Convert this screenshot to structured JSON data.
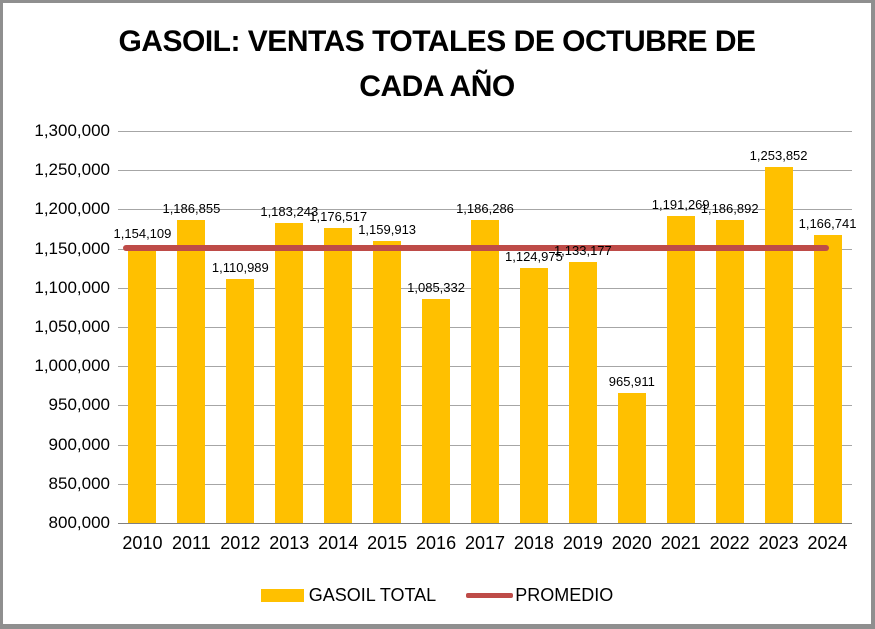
{
  "title": {
    "line1": "GASOIL: VENTAS TOTALES DE OCTUBRE DE",
    "line2": "CADA AÑO"
  },
  "colors": {
    "bar": "#FFC000",
    "promedio_line": "#BE4B48",
    "grid": "#A6A6A6",
    "axis": "#808080",
    "text": "#000000",
    "frame_border": "#8F8F8F",
    "background": "#FFFFFF"
  },
  "chart_data": {
    "type": "bar",
    "title": "GASOIL: VENTAS TOTALES DE OCTUBRE DE CADA AÑO",
    "categories": [
      "2010",
      "2011",
      "2012",
      "2013",
      "2014",
      "2015",
      "2016",
      "2017",
      "2018",
      "2019",
      "2020",
      "2021",
      "2022",
      "2023",
      "2024"
    ],
    "series": [
      {
        "name": "GASOIL TOTAL",
        "type": "bar",
        "color": "#FFC000",
        "values": [
          1154109,
          1186855,
          1110989,
          1183243,
          1176517,
          1159913,
          1085332,
          1186286,
          1124975,
          1133177,
          965911,
          1191269,
          1186892,
          1253852,
          1166741
        ],
        "data_labels": [
          "1,154,109",
          "1,186,855",
          "1,110,989",
          "1,183,243",
          "1,176,517",
          "1,159,913",
          "1,085,332",
          "1,186,286",
          "1,124,975",
          "1,133,177",
          "965,911",
          "1,191,269",
          "1,186,892",
          "1,253,852",
          "1,166,741"
        ]
      },
      {
        "name": "PROMEDIO",
        "type": "line",
        "color": "#BE4B48",
        "value": 1151071
      }
    ],
    "xlabel": "",
    "ylabel": "",
    "ylim": [
      800000,
      1300000
    ],
    "y_tick_step": 50000,
    "y_tick_labels": [
      "1,300,000",
      "1,250,000",
      "1,200,000",
      "1,150,000",
      "1,100,000",
      "1,050,000",
      "1,000,000",
      "950,000",
      "900,000",
      "850,000",
      "800,000"
    ],
    "grid": true,
    "legend_position": "bottom"
  }
}
